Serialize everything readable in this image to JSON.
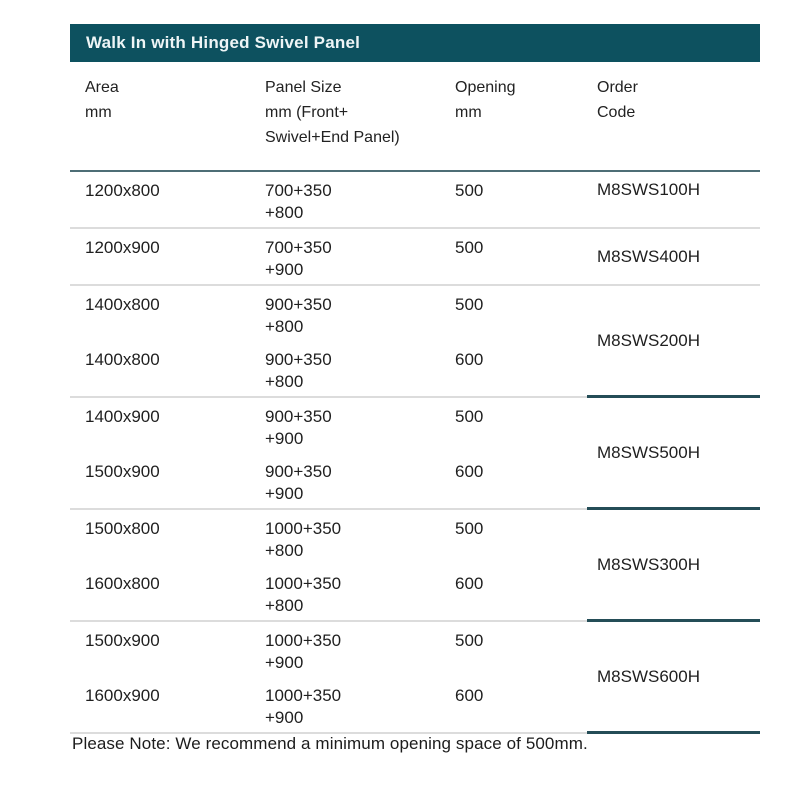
{
  "colors": {
    "page_bg": "#ffffff",
    "header_bar": "#0d515f",
    "header_bar_text": "#eef5f6",
    "header_rule": "#4e6e76",
    "row_rule": "#dcdcdc",
    "code_rule": "#244d57",
    "text": "#1f1f1f"
  },
  "table": {
    "title": "Walk In with Hinged Swivel Panel",
    "columns": [
      {
        "id": "area",
        "lines": [
          "Area",
          "mm"
        ]
      },
      {
        "id": "panel_size",
        "lines": [
          "Panel Size",
          "mm (Front+",
          "Swivel+End Panel)"
        ]
      },
      {
        "id": "opening",
        "lines": [
          "Opening",
          "mm"
        ]
      },
      {
        "id": "order_code",
        "lines": [
          "Order",
          "Code"
        ]
      }
    ],
    "groups": [
      {
        "order_code": "M8SWS100H",
        "code_valign": "top",
        "code_underline": false,
        "rows": [
          {
            "area": "1200x800",
            "panel": [
              "700+350",
              "+800"
            ],
            "opening": "500"
          }
        ]
      },
      {
        "order_code": "M8SWS400H",
        "code_valign": "middle",
        "code_underline": false,
        "rows": [
          {
            "area": "1200x900",
            "panel": [
              "700+350",
              "+900"
            ],
            "opening": "500"
          }
        ]
      },
      {
        "order_code": "M8SWS200H",
        "code_valign": "middle",
        "code_underline": true,
        "rows": [
          {
            "area": "1400x800",
            "panel": [
              "900+350",
              "+800"
            ],
            "opening": "500"
          },
          {
            "area": "1400x800",
            "panel": [
              "900+350",
              "+800"
            ],
            "opening": "600"
          }
        ]
      },
      {
        "order_code": "M8SWS500H",
        "code_valign": "middle",
        "code_underline": true,
        "rows": [
          {
            "area": "1400x900",
            "panel": [
              "900+350",
              "+900"
            ],
            "opening": "500"
          },
          {
            "area": "1500x900",
            "panel": [
              "900+350",
              "+900"
            ],
            "opening": "600"
          }
        ]
      },
      {
        "order_code": "M8SWS300H",
        "code_valign": "middle",
        "code_underline": true,
        "rows": [
          {
            "area": "1500x800",
            "panel": [
              "1000+350",
              "+800"
            ],
            "opening": "500"
          },
          {
            "area": "1600x800",
            "panel": [
              "1000+350",
              "+800"
            ],
            "opening": "600"
          }
        ]
      },
      {
        "order_code": "M8SWS600H",
        "code_valign": "middle",
        "code_underline": true,
        "rows": [
          {
            "area": "1500x900",
            "panel": [
              "1000+350",
              "+900"
            ],
            "opening": "500"
          },
          {
            "area": "1600x900",
            "panel": [
              "1000+350",
              "+900"
            ],
            "opening": "600"
          }
        ]
      }
    ],
    "note": "Please Note: We recommend a minimum opening space of 500mm."
  }
}
